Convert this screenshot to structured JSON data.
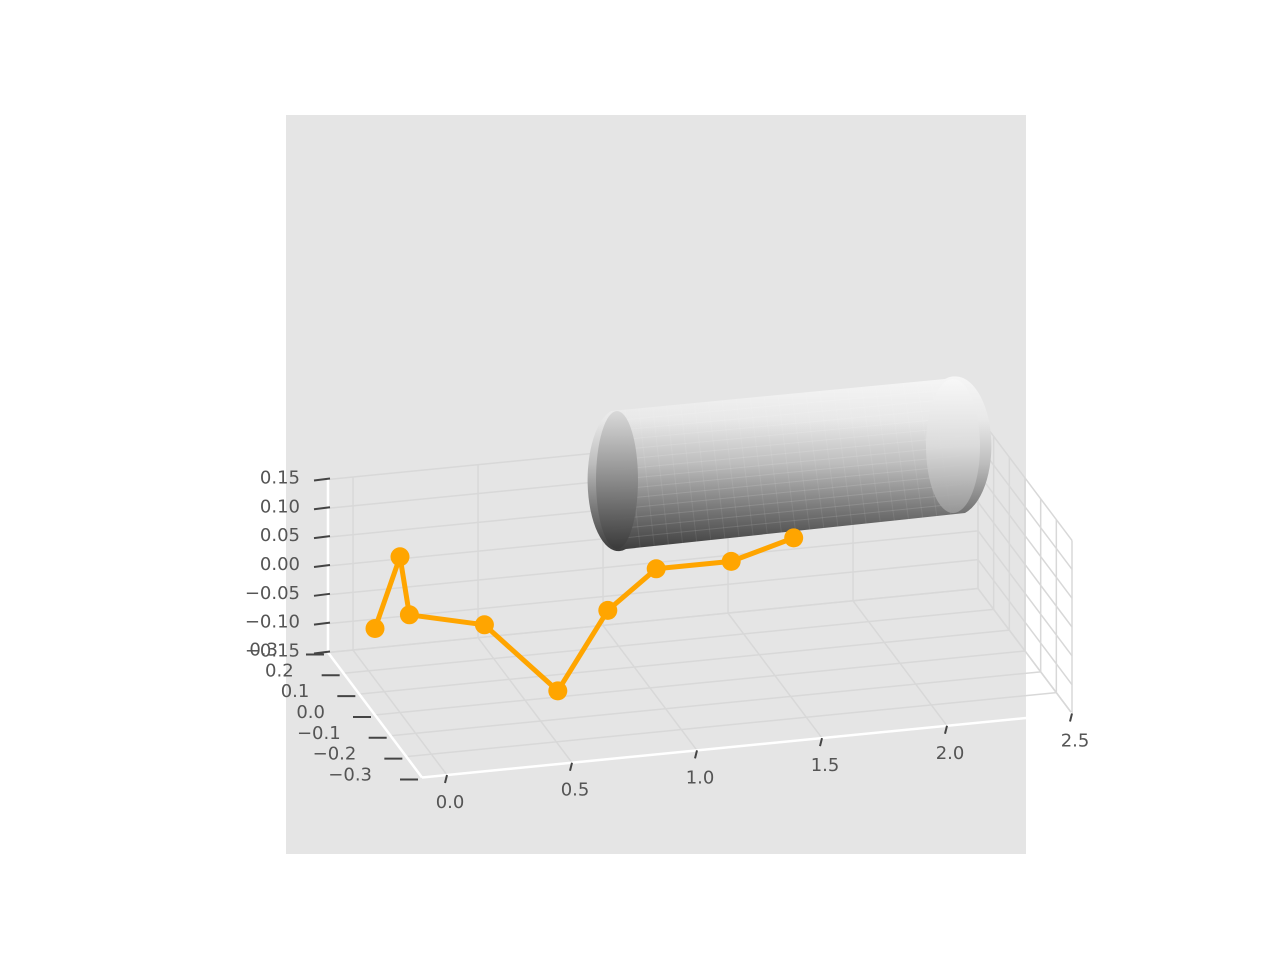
{
  "chart_data": {
    "type": "scatter",
    "projection": "3d",
    "title": "",
    "xlabel": "",
    "ylabel": "",
    "zlabel": "",
    "background_color": "#e5e5e5",
    "grid": true,
    "xlim": [
      -0.1,
      2.5
    ],
    "ylim": [
      -0.3,
      0.3
    ],
    "zlim": [
      -0.15,
      0.15
    ],
    "x_ticks": [
      "0.0",
      "0.5",
      "1.0",
      "1.5",
      "2.0",
      "2.5"
    ],
    "y_ticks": [
      "0.3",
      "0.2",
      "0.1",
      "0.0",
      "−0.1",
      "−0.2",
      "−0.3"
    ],
    "z_ticks": [
      "0.15",
      "0.10",
      "0.05",
      "0.00",
      "−0.05",
      "−0.10",
      "−0.15"
    ],
    "series": [
      {
        "type": "line+markers",
        "color": "#ffa500",
        "points": [
          {
            "x": -0.1,
            "y": 0.0,
            "z": 0.0
          },
          {
            "x": 0.0,
            "y": 0.0,
            "z": 0.12
          },
          {
            "x": 0.05,
            "y": 0.02,
            "z": 0.01
          },
          {
            "x": 0.35,
            "y": 0.02,
            "z": -0.02
          },
          {
            "x": 0.6,
            "y": -0.05,
            "z": -0.12
          },
          {
            "x": 0.85,
            "y": 0.03,
            "z": -0.02
          },
          {
            "x": 1.05,
            "y": 0.04,
            "z": 0.04
          },
          {
            "x": 1.35,
            "y": 0.04,
            "z": 0.04
          },
          {
            "x": 1.6,
            "y": 0.04,
            "z": 0.07
          }
        ]
      }
    ],
    "surfaces": [
      {
        "type": "cylinder",
        "axis": "x",
        "x_range": [
          0.9,
          2.45
        ],
        "radius": 0.15,
        "colormap": "gray"
      }
    ]
  }
}
